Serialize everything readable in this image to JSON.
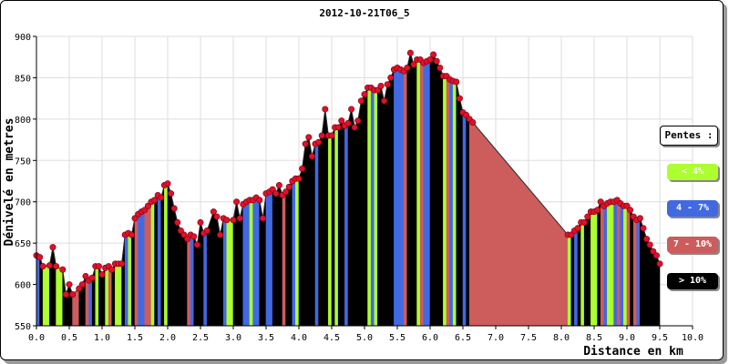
{
  "chart_data": {
    "type": "area",
    "title": "2012-10-21T06_5",
    "xlabel": "Distance en km",
    "ylabel": "Dénivelé en metres",
    "xlim": [
      0,
      10
    ],
    "ylim": [
      550,
      900
    ],
    "xticks": [
      "0.0",
      "0.5",
      "1.0",
      "1.5",
      "2.0",
      "2.5",
      "3.0",
      "3.5",
      "4.0",
      "4.5",
      "5.0",
      "5.5",
      "6.0",
      "6.5",
      "7.0",
      "7.5",
      "8.0",
      "8.5",
      "9.0",
      "9.5",
      "10.0"
    ],
    "yticks": [
      "550",
      "600",
      "650",
      "700",
      "750",
      "800",
      "850",
      "900"
    ],
    "grid": true,
    "legend_position": "right",
    "legend_title": "Pentes :",
    "legend": [
      {
        "label": "< 4%",
        "color": "#adff2f"
      },
      {
        "label": "4 - 7%",
        "color": "#4169e1"
      },
      {
        "label": "7 - 10%",
        "color": "#cd5c5c"
      },
      {
        "label": "> 10%",
        "color": "#000000"
      }
    ],
    "profile": [
      [
        0.0,
        635
      ],
      [
        0.05,
        633
      ],
      [
        0.1,
        622
      ],
      [
        0.2,
        623
      ],
      [
        0.25,
        645
      ],
      [
        0.3,
        622
      ],
      [
        0.4,
        618
      ],
      [
        0.45,
        588
      ],
      [
        0.5,
        600
      ],
      [
        0.55,
        588
      ],
      [
        0.65,
        595
      ],
      [
        0.7,
        600
      ],
      [
        0.75,
        610
      ],
      [
        0.8,
        605
      ],
      [
        0.85,
        608
      ],
      [
        0.9,
        622
      ],
      [
        0.95,
        622
      ],
      [
        1.0,
        612
      ],
      [
        1.05,
        620
      ],
      [
        1.1,
        622
      ],
      [
        1.15,
        618
      ],
      [
        1.2,
        625
      ],
      [
        1.25,
        625
      ],
      [
        1.3,
        625
      ],
      [
        1.35,
        660
      ],
      [
        1.4,
        662
      ],
      [
        1.45,
        660
      ],
      [
        1.5,
        680
      ],
      [
        1.55,
        685
      ],
      [
        1.6,
        688
      ],
      [
        1.65,
        690
      ],
      [
        1.7,
        695
      ],
      [
        1.75,
        700
      ],
      [
        1.8,
        702
      ],
      [
        1.85,
        708
      ],
      [
        1.9,
        705
      ],
      [
        1.95,
        720
      ],
      [
        2.0,
        722
      ],
      [
        2.05,
        710
      ],
      [
        2.1,
        692
      ],
      [
        2.15,
        675
      ],
      [
        2.2,
        665
      ],
      [
        2.25,
        660
      ],
      [
        2.3,
        655
      ],
      [
        2.35,
        660
      ],
      [
        2.4,
        658
      ],
      [
        2.45,
        648
      ],
      [
        2.5,
        675
      ],
      [
        2.55,
        662
      ],
      [
        2.6,
        665
      ],
      [
        2.7,
        688
      ],
      [
        2.75,
        682
      ],
      [
        2.8,
        660
      ],
      [
        2.85,
        680
      ],
      [
        2.9,
        678
      ],
      [
        3.0,
        678
      ],
      [
        3.05,
        700
      ],
      [
        3.1,
        680
      ],
      [
        3.15,
        697
      ],
      [
        3.2,
        700
      ],
      [
        3.25,
        702
      ],
      [
        3.3,
        702
      ],
      [
        3.35,
        705
      ],
      [
        3.4,
        702
      ],
      [
        3.45,
        680
      ],
      [
        3.5,
        710
      ],
      [
        3.55,
        712
      ],
      [
        3.6,
        715
      ],
      [
        3.65,
        710
      ],
      [
        3.7,
        720
      ],
      [
        3.75,
        708
      ],
      [
        3.8,
        712
      ],
      [
        3.85,
        718
      ],
      [
        3.9,
        725
      ],
      [
        3.95,
        728
      ],
      [
        4.0,
        728
      ],
      [
        4.05,
        740
      ],
      [
        4.1,
        770
      ],
      [
        4.15,
        778
      ],
      [
        4.2,
        755
      ],
      [
        4.25,
        770
      ],
      [
        4.3,
        772
      ],
      [
        4.35,
        780
      ],
      [
        4.4,
        812
      ],
      [
        4.45,
        780
      ],
      [
        4.5,
        780
      ],
      [
        4.55,
        790
      ],
      [
        4.6,
        790
      ],
      [
        4.65,
        798
      ],
      [
        4.7,
        792
      ],
      [
        4.75,
        795
      ],
      [
        4.8,
        812
      ],
      [
        4.85,
        790
      ],
      [
        4.9,
        798
      ],
      [
        4.95,
        822
      ],
      [
        5.0,
        830
      ],
      [
        5.05,
        838
      ],
      [
        5.1,
        838
      ],
      [
        5.15,
        835
      ],
      [
        5.2,
        835
      ],
      [
        5.25,
        840
      ],
      [
        5.3,
        822
      ],
      [
        5.35,
        842
      ],
      [
        5.4,
        850
      ],
      [
        5.45,
        860
      ],
      [
        5.5,
        862
      ],
      [
        5.55,
        860
      ],
      [
        5.6,
        858
      ],
      [
        5.65,
        862
      ],
      [
        5.7,
        880
      ],
      [
        5.75,
        866
      ],
      [
        5.8,
        872
      ],
      [
        5.85,
        872
      ],
      [
        5.9,
        868
      ],
      [
        5.95,
        870
      ],
      [
        6.0,
        872
      ],
      [
        6.05,
        878
      ],
      [
        6.1,
        870
      ],
      [
        6.15,
        862
      ],
      [
        6.2,
        852
      ],
      [
        6.25,
        852
      ],
      [
        6.3,
        848
      ],
      [
        6.35,
        846
      ],
      [
        6.4,
        845
      ],
      [
        6.45,
        825
      ],
      [
        6.5,
        808
      ],
      [
        6.55,
        805
      ],
      [
        6.6,
        800
      ],
      [
        6.65,
        796
      ],
      [
        8.1,
        660
      ],
      [
        8.15,
        660
      ],
      [
        8.2,
        665
      ],
      [
        8.25,
        668
      ],
      [
        8.3,
        675
      ],
      [
        8.35,
        675
      ],
      [
        8.4,
        682
      ],
      [
        8.45,
        688
      ],
      [
        8.5,
        688
      ],
      [
        8.55,
        690
      ],
      [
        8.6,
        700
      ],
      [
        8.65,
        695
      ],
      [
        8.7,
        698
      ],
      [
        8.75,
        700
      ],
      [
        8.8,
        700
      ],
      [
        8.85,
        702
      ],
      [
        8.9,
        698
      ],
      [
        8.95,
        695
      ],
      [
        9.0,
        695
      ],
      [
        9.05,
        690
      ],
      [
        9.1,
        682
      ],
      [
        9.15,
        678
      ],
      [
        9.2,
        680
      ],
      [
        9.25,
        668
      ],
      [
        9.3,
        655
      ],
      [
        9.35,
        648
      ],
      [
        9.4,
        640
      ],
      [
        9.45,
        635
      ],
      [
        9.5,
        625
      ]
    ],
    "segments": [
      {
        "x": [
          0.0,
          0.8
        ],
        "class": "< 4%"
      },
      {
        "x": [
          0.8,
          1.3
        ],
        "class": "< 4%"
      }
    ]
  }
}
